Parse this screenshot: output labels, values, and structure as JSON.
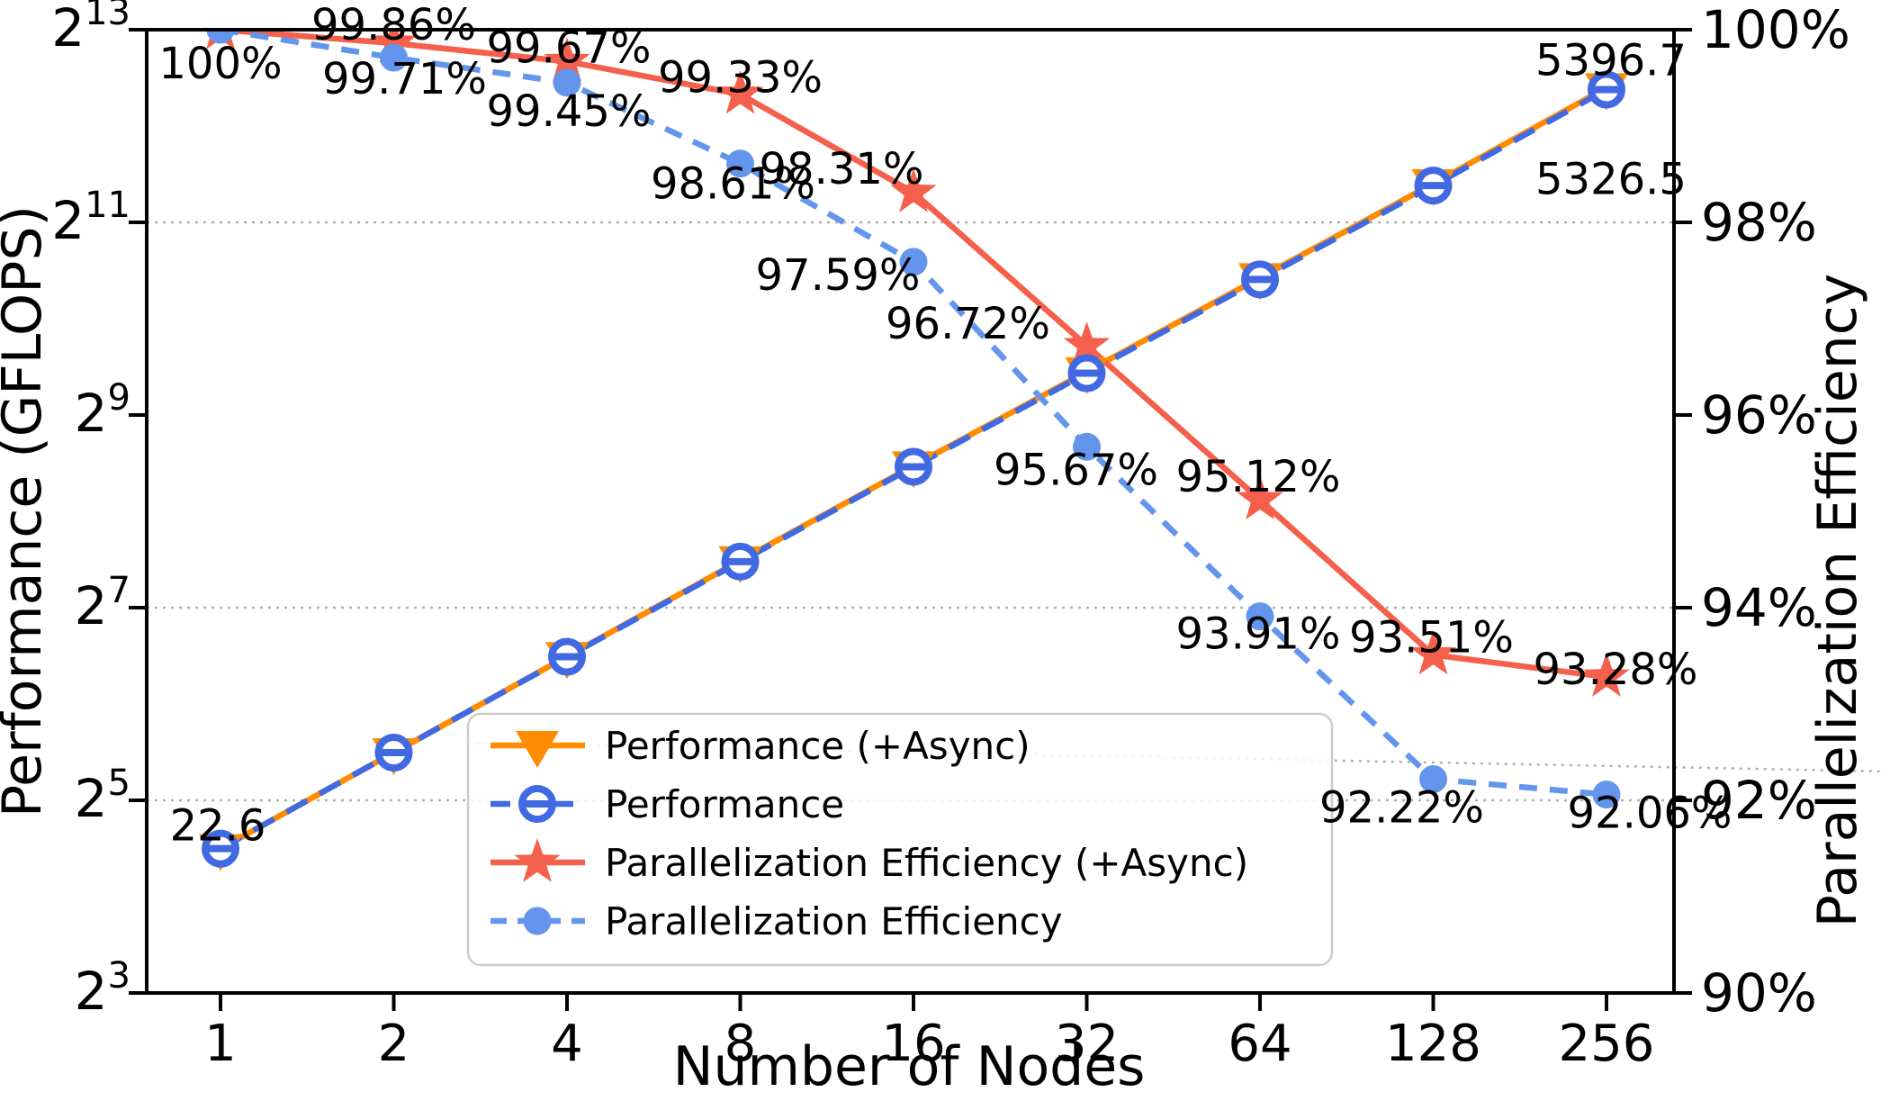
{
  "chart_data": {
    "type": "line",
    "title": "",
    "xlabel": "Number of Nodes",
    "ylabel_left": "Performance (GFLOPS)",
    "ylabel_right": "Parallelization Efficiency",
    "x": [
      1,
      2,
      4,
      8,
      16,
      32,
      64,
      128,
      256
    ],
    "x_tick_labels": [
      "1",
      "2",
      "4",
      "8",
      "16",
      "32",
      "64",
      "128",
      "256"
    ],
    "y_ticks_left": [
      {
        "base": "2",
        "exp": "13"
      },
      {
        "base": "2",
        "exp": "11"
      },
      {
        "base": "2",
        "exp": "9"
      },
      {
        "base": "2",
        "exp": "7"
      },
      {
        "base": "2",
        "exp": "5"
      },
      {
        "base": "2",
        "exp": "3"
      }
    ],
    "y_ticks_right": [
      "100%",
      "98%",
      "96%",
      "94%",
      "92%",
      "90%"
    ],
    "axis_left_log2_range": [
      3,
      13
    ],
    "axis_right_range_pct": [
      90,
      100
    ],
    "grid_on": true,
    "gridlines_right_pct": [
      98,
      94,
      92
    ],
    "extra_dotted_line": {
      "from_pct": 92.59,
      "to_pct": 92.3
    },
    "legend_position": "lower center-left",
    "series": [
      {
        "name": "Performance (+Async)",
        "axis": "left",
        "color": "#FF8C00",
        "line_style": "solid",
        "marker": "triangle-down",
        "values": [
          22.6,
          45.1,
          90.1,
          179.6,
          355.5,
          699.5,
          1375.8,
          2705.2,
          5396.7
        ],
        "point_labels": [
          {
            "i": 0,
            "text": "22.6",
            "dx": -3,
            "dy": -25
          },
          {
            "i": 8,
            "text": "5396.7",
            "dx": 5,
            "dy": -30
          }
        ]
      },
      {
        "name": "Performance",
        "axis": "left",
        "color": "#4169E1",
        "line_style": "dashed",
        "marker": "circle-open",
        "values": [
          22.6,
          45.1,
          89.9,
          178.3,
          352.9,
          691.9,
          1358.3,
          2667.9,
          5326.5
        ],
        "point_labels": [
          {
            "i": 8,
            "text": "5326.5",
            "dx": 5,
            "dy": 100
          }
        ]
      },
      {
        "name": "Parallelization Efficiency (+Async)",
        "axis": "right",
        "color": "#F4604C",
        "line_style": "solid",
        "marker": "star",
        "values": [
          100,
          99.86,
          99.67,
          99.33,
          98.31,
          96.72,
          95.12,
          93.51,
          93.28
        ],
        "point_labels": [
          {
            "i": 0,
            "text": "100%",
            "dx": 0,
            "dy": 38
          },
          {
            "i": 1,
            "text": "99.86%",
            "dx": 0,
            "dy": -20
          },
          {
            "i": 2,
            "text": "99.67%",
            "dx": 2,
            "dy": -15
          },
          {
            "i": 3,
            "text": "99.33%",
            "dx": 0,
            "dy": -18
          },
          {
            "i": 4,
            "text": "98.31%",
            "dx": -80,
            "dy": -26
          },
          {
            "i": 5,
            "text": "96.72%",
            "dx": -132,
            "dy": -24
          },
          {
            "i": 6,
            "text": "95.12%",
            "dx": -2,
            "dy": -25
          },
          {
            "i": 7,
            "text": "93.51%",
            "dx": -2,
            "dy": -19
          },
          {
            "i": 8,
            "text": "93.28%",
            "dx": 10,
            "dy": -8
          }
        ]
      },
      {
        "name": "Parallelization Efficiency",
        "axis": "right",
        "color": "#6495ED",
        "line_style": "dashed",
        "marker": "circle-filled",
        "values": [
          100,
          99.71,
          99.45,
          98.61,
          97.59,
          95.67,
          93.91,
          92.22,
          92.06
        ],
        "point_labels": [
          {
            "i": 1,
            "text": "99.71%",
            "dx": 12,
            "dy": 24
          },
          {
            "i": 2,
            "text": "99.45%",
            "dx": 2,
            "dy": 32
          },
          {
            "i": 3,
            "text": "98.61%",
            "dx": -8,
            "dy": 23
          },
          {
            "i": 4,
            "text": "97.59%",
            "dx": -84,
            "dy": 15
          },
          {
            "i": 5,
            "text": "95.67%",
            "dx": -12,
            "dy": 26
          },
          {
            "i": 6,
            "text": "93.91%",
            "dx": -2,
            "dy": 20
          },
          {
            "i": 7,
            "text": "92.22%",
            "dx": -35,
            "dy": 32
          },
          {
            "i": 8,
            "text": "92.06%",
            "dx": 48,
            "dy": 21
          }
        ]
      }
    ],
    "colors": {
      "grid": "#AFAFAF",
      "spine": "#000000",
      "legend_border": "#CCCCCC",
      "background": "#FFFFFF"
    }
  }
}
